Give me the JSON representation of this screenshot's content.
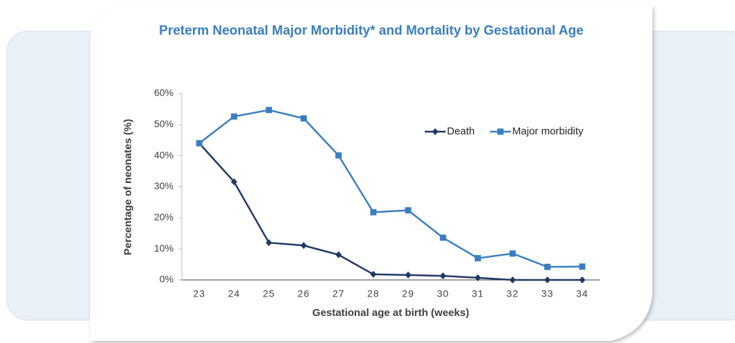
{
  "chart_data": {
    "type": "line",
    "title": "Preterm Neonatal Major Morbidity* and Mortality by Gestational Age",
    "x_label": "Gestational age at birth (weeks)",
    "y_label": "Percentage of neonates (%)",
    "categories": [
      "23",
      "24",
      "25",
      "26",
      "27",
      "28",
      "29",
      "30",
      "31",
      "32",
      "33",
      "34"
    ],
    "series": [
      {
        "name": "Death",
        "color": "#1f3864",
        "marker": "diamond",
        "values": [
          44,
          31.6,
          12,
          11.1,
          8.1,
          1.8,
          1.6,
          1.3,
          0.7,
          0,
          0,
          0
        ]
      },
      {
        "name": "Major morbidity",
        "color": "#3a7ebf",
        "marker": "square",
        "values": [
          44,
          52.6,
          54.7,
          52,
          40.1,
          21.8,
          22.4,
          13.6,
          7,
          8.5,
          4.2,
          4.3
        ]
      }
    ],
    "ylim": [
      0,
      60
    ],
    "yticks": [
      {
        "value": 0,
        "label": "0%"
      },
      {
        "value": 10,
        "label": "10%"
      },
      {
        "value": 20,
        "label": "20%"
      },
      {
        "value": 30,
        "label": "30%"
      },
      {
        "value": 40,
        "label": "40%"
      },
      {
        "value": 50,
        "label": "50%"
      },
      {
        "value": 60,
        "label": "60%"
      }
    ],
    "grid": false,
    "legend": "upper-right"
  }
}
